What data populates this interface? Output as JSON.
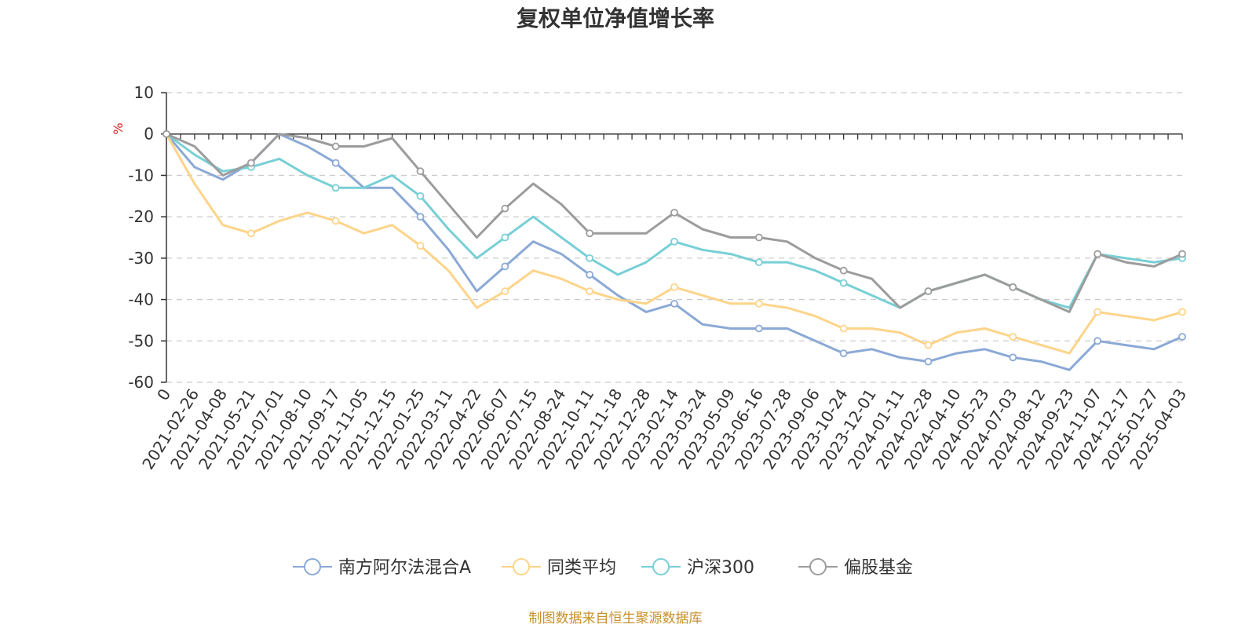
{
  "chart_data": {
    "type": "line",
    "title": "复权单位净值增长率",
    "ylabel": "%",
    "xlabel": "",
    "ylim": [
      -60,
      10
    ],
    "yticks": [
      10,
      0,
      -10,
      -20,
      -30,
      -40,
      -50,
      -60
    ],
    "grid": true,
    "legend_position": "bottom-center",
    "categories": [
      "0",
      "2021-02-26",
      "2021-04-08",
      "2021-05-21",
      "2021-07-01",
      "2021-08-10",
      "2021-09-17",
      "2021-11-05",
      "2021-12-15",
      "2022-01-25",
      "2022-03-11",
      "2022-04-22",
      "2022-06-07",
      "2022-07-15",
      "2022-08-24",
      "2022-10-11",
      "2022-11-18",
      "2022-12-28",
      "2023-02-14",
      "2023-03-24",
      "2023-05-09",
      "2023-06-16",
      "2023-07-28",
      "2023-09-06",
      "2023-10-24",
      "2023-12-01",
      "2024-01-11",
      "2024-02-28",
      "2024-04-10",
      "2024-05-23",
      "2024-07-03",
      "2024-08-12",
      "2024-09-23",
      "2024-11-07",
      "2024-12-17",
      "2025-01-27",
      "2025-04-03"
    ],
    "series": [
      {
        "name": "南方阿尔法混合A",
        "color": "#8ba9d6",
        "values": [
          0,
          -8,
          -11,
          -7,
          0,
          -3,
          -7,
          -13,
          -13,
          -20,
          -28,
          -38,
          -32,
          -26,
          -29,
          -34,
          -39,
          -43,
          -41,
          -46,
          -47,
          -47,
          -47,
          -50,
          -53,
          -52,
          -54,
          -55,
          -53,
          -52,
          -54,
          -55,
          -57,
          -50,
          -51,
          -52,
          -49
        ]
      },
      {
        "name": "同类平均",
        "color": "#fdd48a",
        "values": [
          0,
          -12,
          -22,
          -24,
          -21,
          -19,
          -21,
          -24,
          -22,
          -27,
          -33,
          -42,
          -38,
          -33,
          -35,
          -38,
          -40,
          -41,
          -37,
          -39,
          -41,
          -41,
          -42,
          -44,
          -47,
          -47,
          -48,
          -51,
          -48,
          -47,
          -49,
          -51,
          -53,
          -43,
          -44,
          -45,
          -43
        ]
      },
      {
        "name": "沪深300",
        "color": "#78cfd6",
        "values": [
          0,
          -5,
          -9,
          -8,
          -6,
          -10,
          -13,
          -13,
          -10,
          -15,
          -23,
          -30,
          -25,
          -20,
          -25,
          -30,
          -34,
          -31,
          -26,
          -28,
          -29,
          -31,
          -31,
          -33,
          -36,
          -39,
          -42,
          -38,
          -36,
          -34,
          -37,
          -40,
          -42,
          -29,
          -30,
          -31,
          -30
        ]
      },
      {
        "name": "偏股基金",
        "color": "#9c9c9c",
        "values": [
          0,
          -3,
          -10,
          -7,
          0,
          -1,
          -3,
          -3,
          -1,
          -9,
          -17,
          -25,
          -18,
          -12,
          -17,
          -24,
          -24,
          -24,
          -19,
          -23,
          -25,
          -25,
          -26,
          -30,
          -33,
          -35,
          -42,
          -38,
          -36,
          -34,
          -37,
          -40,
          -43,
          -29,
          -31,
          -32,
          -29
        ]
      }
    ]
  },
  "source_note": "制图数据来自恒生聚源数据库"
}
